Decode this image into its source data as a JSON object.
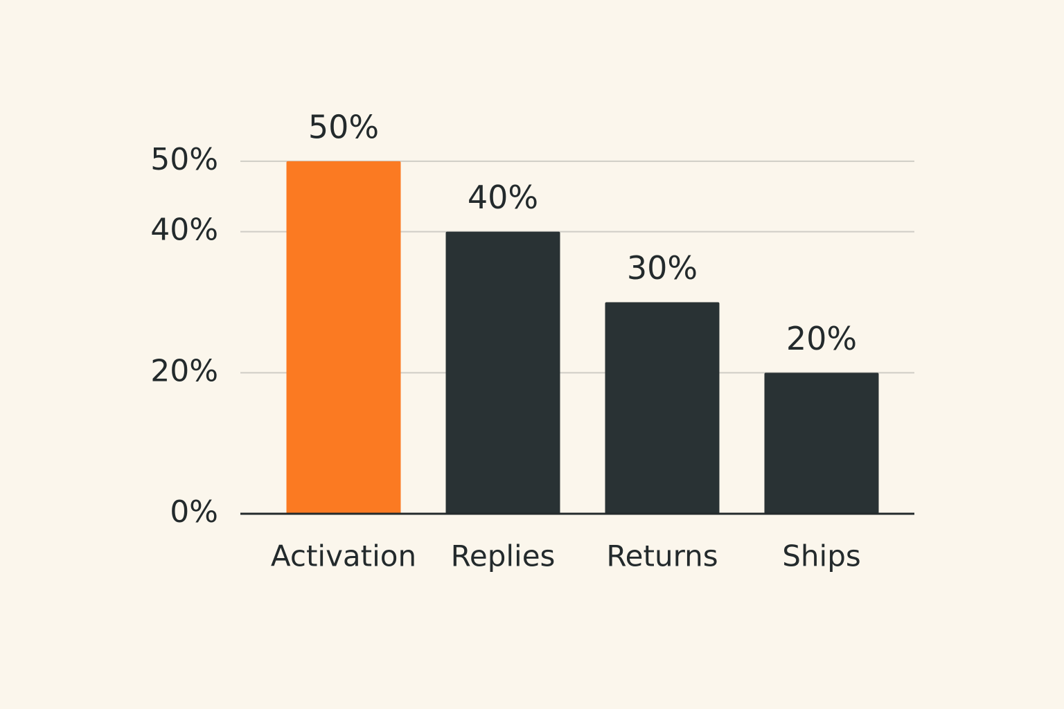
{
  "chart_data": {
    "type": "bar",
    "categories": [
      "Activation",
      "Replies",
      "Returns",
      "Ships"
    ],
    "values": [
      50,
      40,
      30,
      20
    ],
    "value_labels": [
      "50%",
      "40%",
      "30%",
      "20%"
    ],
    "colors": [
      "#fb7a22",
      "#293234",
      "#293234",
      "#293234"
    ],
    "ylim": [
      0,
      60
    ],
    "yticks": [
      {
        "value": 0,
        "label": "0%"
      },
      {
        "value": 20,
        "label": "20%"
      },
      {
        "value": 40,
        "label": "40%"
      },
      {
        "value": 50,
        "label": "50%"
      }
    ],
    "grid": true
  }
}
